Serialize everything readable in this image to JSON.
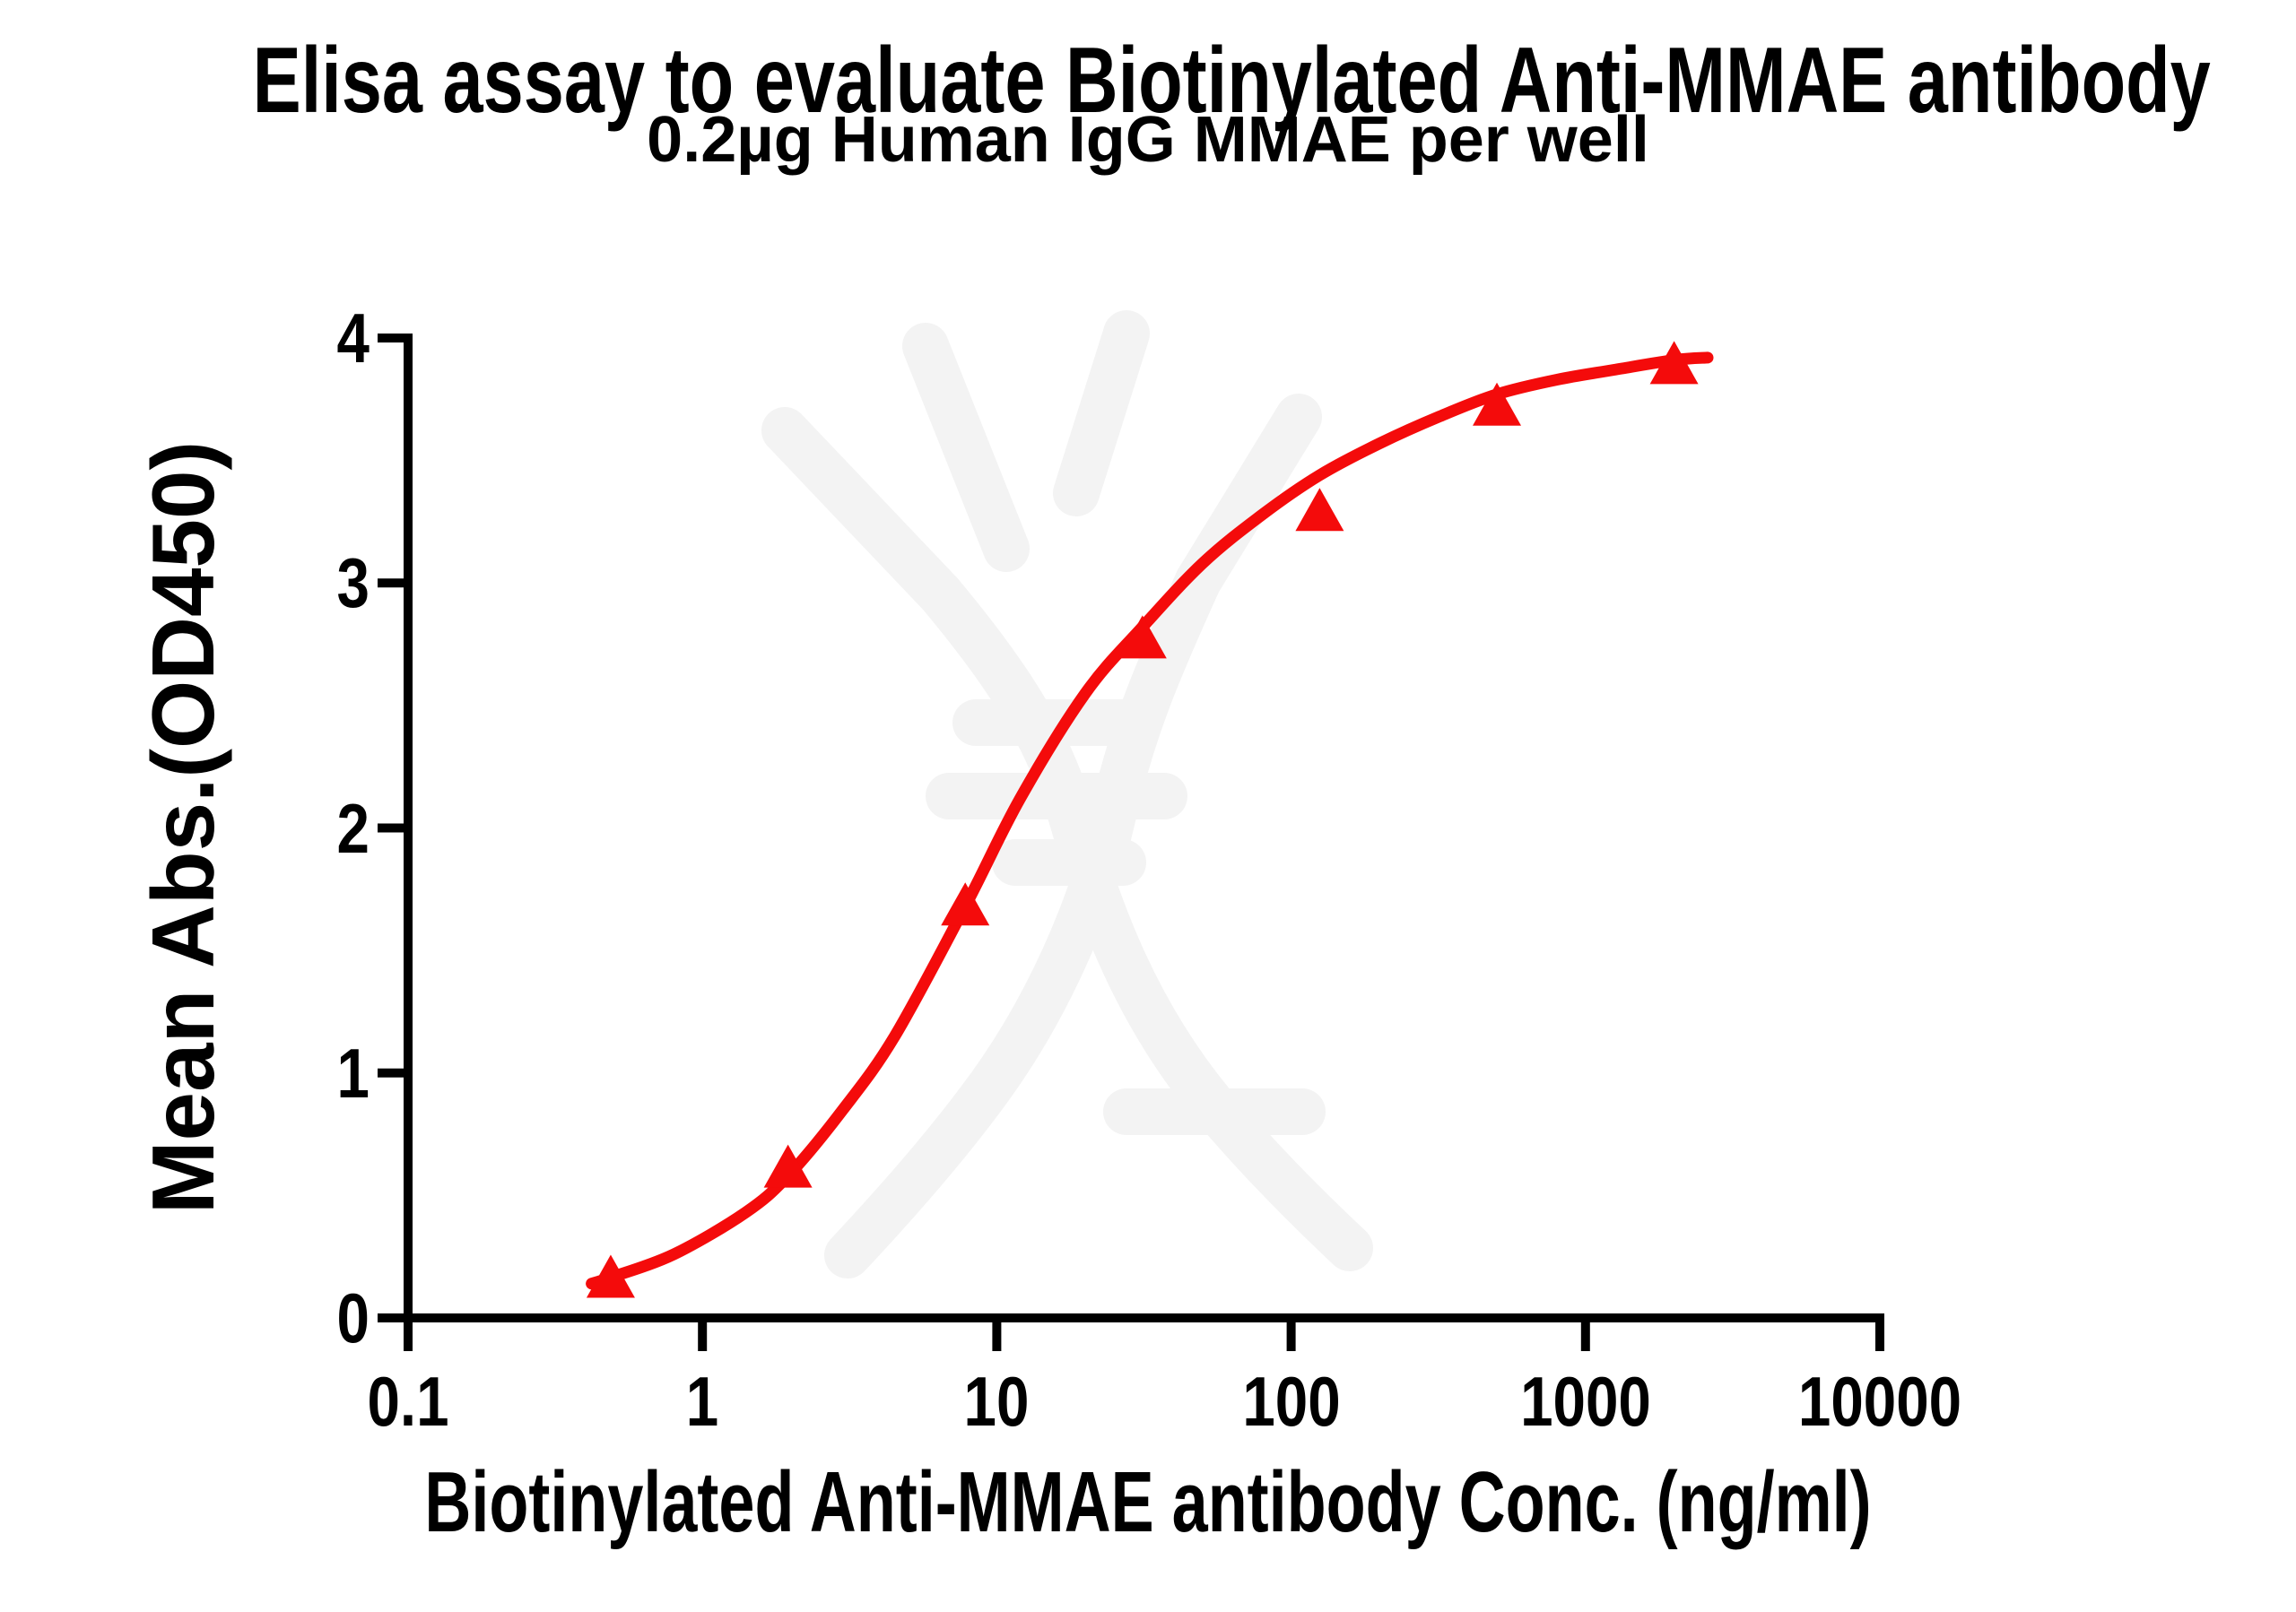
{
  "chart_data": {
    "type": "scatter",
    "title": "Elisa assay to evaluate Biotinylated Anti-MMAE antibody",
    "subtitle": "0.2µg Human IgG MMAE per well",
    "xlabel": "Biotinylated Anti-MMAE antibody Conc. (ng/ml)",
    "ylabel": "Mean Abs.(OD450)",
    "x_scale": "log10",
    "xlim": [
      0.1,
      10000
    ],
    "ylim": [
      0,
      4
    ],
    "x_ticks": [
      "0.1",
      "1",
      "10",
      "100",
      "1000",
      "10000"
    ],
    "y_ticks": [
      "0",
      "1",
      "2",
      "3",
      "4"
    ],
    "grid": false,
    "legend": "none",
    "marker": "filled-triangle-up",
    "series": [
      {
        "name": "Biotinylated Anti-MMAE antibody",
        "color": "#f40b0b",
        "x": [
          0.488,
          1.953,
          7.813,
          31.25,
          125,
          500,
          2000
        ],
        "y": [
          0.17,
          0.62,
          1.69,
          2.78,
          3.3,
          3.73,
          3.9
        ]
      }
    ],
    "fit_curve": {
      "model": "4PL sigmoid dose-response",
      "x": [
        0.42,
        0.488,
        0.8,
        1.4,
        1.953,
        3,
        4.5,
        7.813,
        12,
        20,
        31.25,
        50,
        80,
        125,
        200,
        320,
        500,
        800,
        1250,
        2000,
        2600
      ],
      "y": [
        0.14,
        0.165,
        0.26,
        0.43,
        0.58,
        0.85,
        1.15,
        1.68,
        2.12,
        2.55,
        2.82,
        3.08,
        3.28,
        3.44,
        3.57,
        3.68,
        3.77,
        3.83,
        3.87,
        3.91,
        3.92
      ]
    }
  },
  "colors": {
    "curve": "#f40b0b",
    "axis": "#000000",
    "text": "#000000",
    "watermark": "#f3f3f3",
    "background": "#ffffff"
  }
}
